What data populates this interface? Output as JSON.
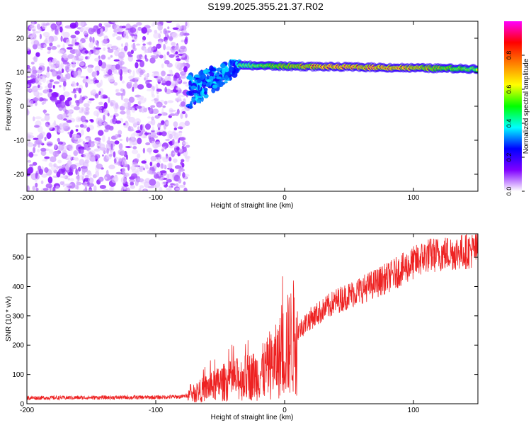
{
  "title": "S199.2025.355.21.37.R02",
  "chart_data": [
    {
      "type": "heatmap",
      "name": "spectrogram",
      "xlabel": "Height of straight line (km)",
      "ylabel": "Frequency (Hz)",
      "xlim": [
        -200,
        150
      ],
      "ylim": [
        -25,
        25
      ],
      "xticks": [
        -200,
        -100,
        0,
        100
      ],
      "yticks": [
        -20,
        -10,
        0,
        10,
        20
      ],
      "colorbar": {
        "label": "Normalized spectral amplitude",
        "range": [
          0,
          1
        ],
        "ticks": [
          0.0,
          0.2,
          0.4,
          0.6,
          0.8
        ],
        "tick_labels": [
          "0.0",
          "0.2",
          "0.4",
          "0.6",
          "0.8"
        ],
        "colors": [
          "#ffffff",
          "#8000ff",
          "#0000ff",
          "#00ffff",
          "#00ff00",
          "#ffff00",
          "#ff8000",
          "#ff0000",
          "#ff00ff"
        ]
      },
      "features": [
        {
          "name": "noise-region",
          "x": [
            -200,
            -75
          ],
          "y": [
            -25,
            25
          ],
          "amplitude": [
            0.05,
            0.35
          ]
        },
        {
          "name": "onset-cluster",
          "x": [
            -75,
            -35
          ],
          "y": [
            0,
            15
          ],
          "amplitude": [
            0.2,
            0.5
          ]
        },
        {
          "name": "tone-line",
          "x": [
            -35,
            150
          ],
          "y": 12,
          "y_end": 11,
          "amplitude": [
            0.4,
            0.95
          ]
        }
      ]
    },
    {
      "type": "line",
      "name": "snr",
      "xlabel": "Height of straight line (km)",
      "ylabel": "SNR (10 * v/v)",
      "xlim": [
        -200,
        150
      ],
      "ylim": [
        0,
        580
      ],
      "xticks": [
        -200,
        -100,
        0,
        100
      ],
      "yticks": [
        0,
        100,
        200,
        300,
        400,
        500
      ],
      "color": "#ee2222",
      "series": [
        {
          "name": "SNR",
          "x": [
            -200,
            -150,
            -100,
            -80,
            -75,
            -70,
            -65,
            -60,
            -55,
            -50,
            -45,
            -40,
            -35,
            -30,
            -25,
            -20,
            -15,
            -10,
            -5,
            0,
            5,
            10,
            15,
            20,
            25,
            30,
            40,
            50,
            60,
            70,
            80,
            90,
            100,
            110,
            120,
            130,
            140,
            150
          ],
          "values": [
            20,
            21,
            22,
            24,
            28,
            35,
            45,
            55,
            60,
            70,
            75,
            80,
            85,
            90,
            95,
            100,
            115,
            130,
            150,
            185,
            215,
            245,
            270,
            290,
            305,
            320,
            350,
            370,
            390,
            410,
            430,
            455,
            480,
            505,
            510,
            515,
            520,
            525
          ]
        }
      ]
    }
  ]
}
